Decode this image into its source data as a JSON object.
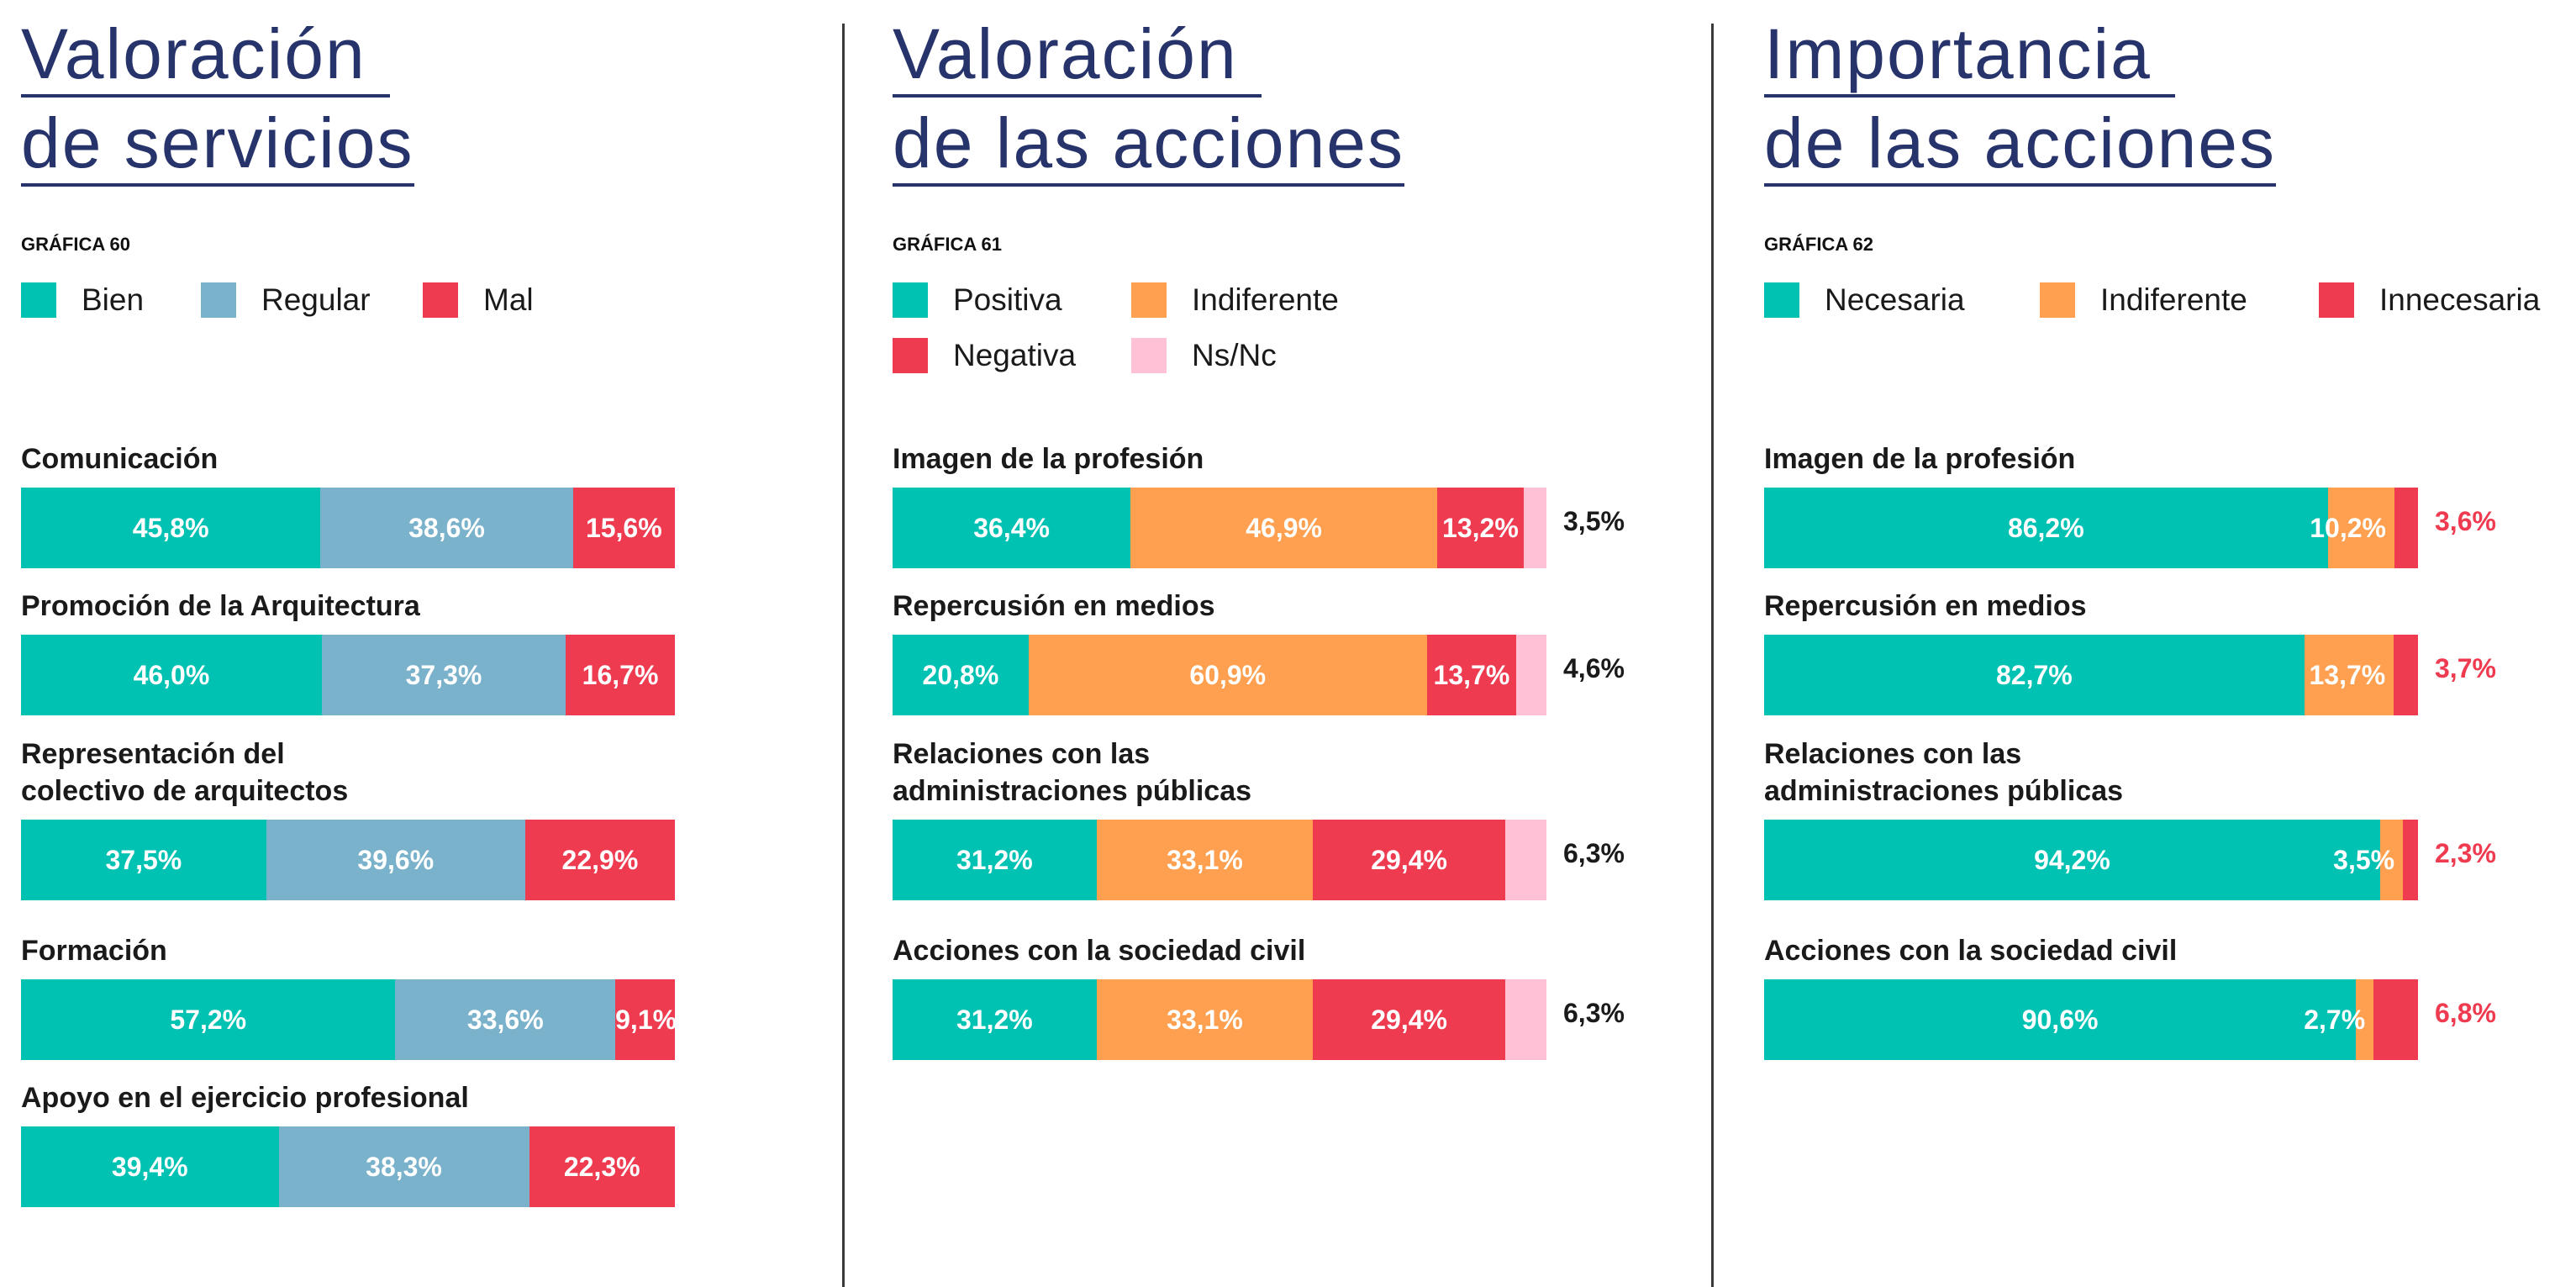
{
  "colors": {
    "title": "#27336b",
    "bien": "#00c2b3",
    "regular": "#7ab1cb",
    "mal": "#ef3b50",
    "positiva": "#00c2b3",
    "indiferente": "#ffa050",
    "negativa": "#ef3b50",
    "nsnc": "#ffc1d6"
  },
  "chart_data": [
    {
      "type": "bar",
      "title_line1": "Valoración",
      "title_line2": "de servicios",
      "chart_number": "GRÁFICA 60",
      "legend": [
        "Bien",
        "Regular",
        "Mal"
      ],
      "categories": [
        {
          "label": [
            "Comunicación"
          ],
          "values": [
            45.8,
            38.6,
            15.6
          ],
          "labels": [
            "45,8%",
            "38,6%",
            "15,6%"
          ]
        },
        {
          "label": [
            "Promoción de la Arquitectura"
          ],
          "values": [
            46.0,
            37.3,
            16.7
          ],
          "labels": [
            "46,0%",
            "37,3%",
            "16,7%"
          ]
        },
        {
          "label": [
            "Representación del",
            "colectivo de arquitectos"
          ],
          "values": [
            37.5,
            39.6,
            22.9
          ],
          "labels": [
            "37,5%",
            "39,6%",
            "22,9%"
          ]
        },
        {
          "label": [
            "Formación"
          ],
          "values": [
            57.2,
            33.6,
            9.1
          ],
          "labels": [
            "57,2%",
            "33,6%",
            "9,1%"
          ]
        },
        {
          "label": [
            "Apoyo en el ejercicio profesional"
          ],
          "values": [
            39.4,
            38.3,
            22.3
          ],
          "labels": [
            "39,4%",
            "38,3%",
            "22,3%"
          ]
        }
      ]
    },
    {
      "type": "bar",
      "title_line1": "Valoración",
      "title_line2": "de las acciones",
      "chart_number": "GRÁFICA 61",
      "legend": [
        "Positiva",
        "Indiferente",
        "Negativa",
        "Ns/Nc"
      ],
      "categories": [
        {
          "label": [
            "Imagen de la profesión"
          ],
          "values": [
            36.4,
            46.9,
            13.2,
            3.5
          ],
          "labels": [
            "36,4%",
            "46,9%",
            "13,2%",
            "3,5%"
          ]
        },
        {
          "label": [
            "Repercusión en medios"
          ],
          "values": [
            20.8,
            60.9,
            13.7,
            4.6
          ],
          "labels": [
            "20,8%",
            "60,9%",
            "13,7%",
            "4,6%"
          ]
        },
        {
          "label": [
            "Relaciones con las",
            "administraciones públicas"
          ],
          "values": [
            31.2,
            33.1,
            29.4,
            6.3
          ],
          "labels": [
            "31,2%",
            "33,1%",
            "29,4%",
            "6,3%"
          ]
        },
        {
          "label": [
            "Acciones con la sociedad civil"
          ],
          "values": [
            31.2,
            33.1,
            29.4,
            6.3
          ],
          "labels": [
            "31,2%",
            "33,1%",
            "29,4%",
            "6,3%"
          ]
        }
      ]
    },
    {
      "type": "bar",
      "title_line1": "Importancia",
      "title_line2": "de las acciones",
      "chart_number": "GRÁFICA 62",
      "legend": [
        "Necesaria",
        "Indiferente",
        "Innecesaria"
      ],
      "categories": [
        {
          "label": [
            "Imagen de la profesión"
          ],
          "values": [
            86.2,
            10.2,
            3.6
          ],
          "labels": [
            "86,2%",
            "10,2%",
            "3,6%"
          ]
        },
        {
          "label": [
            "Repercusión en medios"
          ],
          "values": [
            82.7,
            13.7,
            3.7
          ],
          "labels": [
            "82,7%",
            "13,7%",
            "3,7%"
          ]
        },
        {
          "label": [
            "Relaciones con las",
            "administraciones públicas"
          ],
          "values": [
            94.2,
            3.5,
            2.3
          ],
          "labels": [
            "94,2%",
            "3,5%",
            "2,3%"
          ]
        },
        {
          "label": [
            "Acciones con la sociedad civil"
          ],
          "values": [
            90.6,
            2.7,
            6.8
          ],
          "labels": [
            "90,6%",
            "2,7%",
            "6,8%"
          ]
        }
      ]
    }
  ]
}
